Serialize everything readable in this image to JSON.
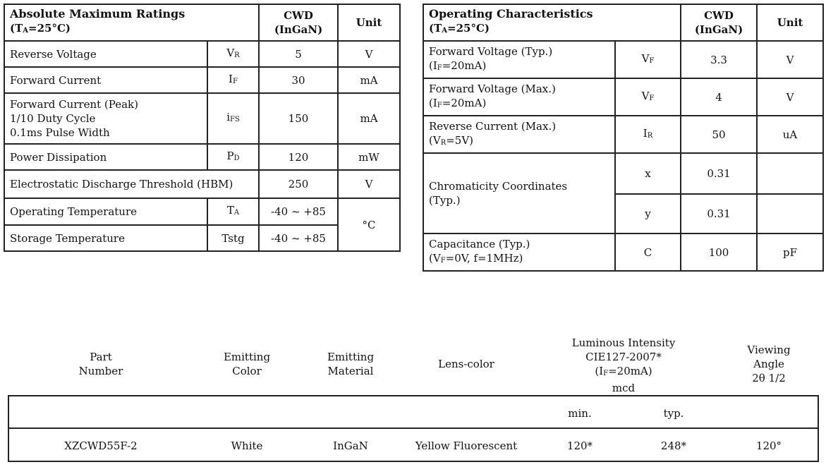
{
  "amr": {
    "title": "Absolute Maximum Ratings",
    "cond": {
      "pre": "(T",
      "sub": "A",
      "post": "=25°C)"
    },
    "col_cwd": "CWD",
    "col_mat": "(InGaN)",
    "col_unit": "Unit",
    "rows": [
      {
        "param": [
          "Reverse Voltage"
        ],
        "sym": "V",
        "sub": "R",
        "val": "5",
        "unit": "V"
      },
      {
        "param": [
          "Forward Current"
        ],
        "sym": "I",
        "sub": "F",
        "val": "30",
        "unit": "mA"
      },
      {
        "param": [
          "Forward Current (Peak)",
          "1/10 Duty Cycle",
          "0.1ms Pulse Width"
        ],
        "sym": "i",
        "sub": "FS",
        "val": "150",
        "unit": "mA"
      },
      {
        "param": [
          "Power Dissipation"
        ],
        "sym": "P",
        "sub": "D",
        "val": "120",
        "unit": "mW"
      },
      {
        "param": [
          "Electrostatic Discharge Threshold (HBM)"
        ],
        "sym": "",
        "sub": "",
        "val": "250",
        "unit": "V"
      },
      {
        "param": [
          "Operating Temperature"
        ],
        "sym": "T",
        "sub": "A",
        "val": "-40 ~ +85",
        "unit": "°C"
      },
      {
        "param": [
          "Storage Temperature"
        ],
        "sym": "Tstg",
        "sub": "",
        "val": "-40 ~ +85",
        "unit": ""
      }
    ]
  },
  "opc": {
    "title": "Operating Characteristics",
    "cond": {
      "pre": "(T",
      "sub": "A",
      "post": "=25°C)"
    },
    "col_cwd": "CWD",
    "col_mat": "(InGaN)",
    "col_unit": "Unit",
    "rows": [
      {
        "p1": "Forward Voltage (Typ.)",
        "p2pre": "(I",
        "p2sub": "F",
        "p2post": "=20mA)",
        "sym": "V",
        "sub": "F",
        "val": "3.3",
        "unit": "V"
      },
      {
        "p1": "Forward Voltage (Max.)",
        "p2pre": "(I",
        "p2sub": "F",
        "p2post": "=20mA)",
        "sym": "V",
        "sub": "F",
        "val": "4",
        "unit": "V"
      },
      {
        "p1": "Reverse Current (Max.)",
        "p2pre": "(V",
        "p2sub": "R",
        "p2post": "=5V)",
        "sym": "I",
        "sub": "R",
        "val": "50",
        "unit": "uA"
      },
      {
        "p1": "Chromaticity Coordinates",
        "p2": "(Typ.)",
        "sym_x": "x",
        "val_x": "0.31",
        "sym_y": "y",
        "val_y": "0.31"
      },
      {
        "p1": "Capacitance (Typ.)",
        "p2pre": "(V",
        "p2sub": "F",
        "p2post": "=0V, f=1MHz)",
        "sym": "C",
        "val": "100",
        "unit": "pF"
      }
    ]
  },
  "product": {
    "headers": {
      "part": [
        "Part",
        "Number"
      ],
      "color": [
        "Emitting",
        "Color"
      ],
      "material": [
        "Emitting",
        "Material"
      ],
      "lens": "Lens-color",
      "intensity": {
        "l1": "Luminous  Intensity",
        "l2": "CIE127-2007*",
        "l3pre": "(I",
        "l3sub": "F",
        "l3post": "=20mA)",
        "l4": "mcd"
      },
      "angle": [
        "Viewing",
        "Angle",
        "2θ 1/2"
      ]
    },
    "subheaders": {
      "min": "min.",
      "typ": "typ."
    },
    "row": {
      "part": "XZCWD55F-2",
      "color": "White",
      "material": "InGaN",
      "lens": "Yellow Fluorescent",
      "min": "120*",
      "typ": "248*",
      "angle": "120°"
    }
  }
}
